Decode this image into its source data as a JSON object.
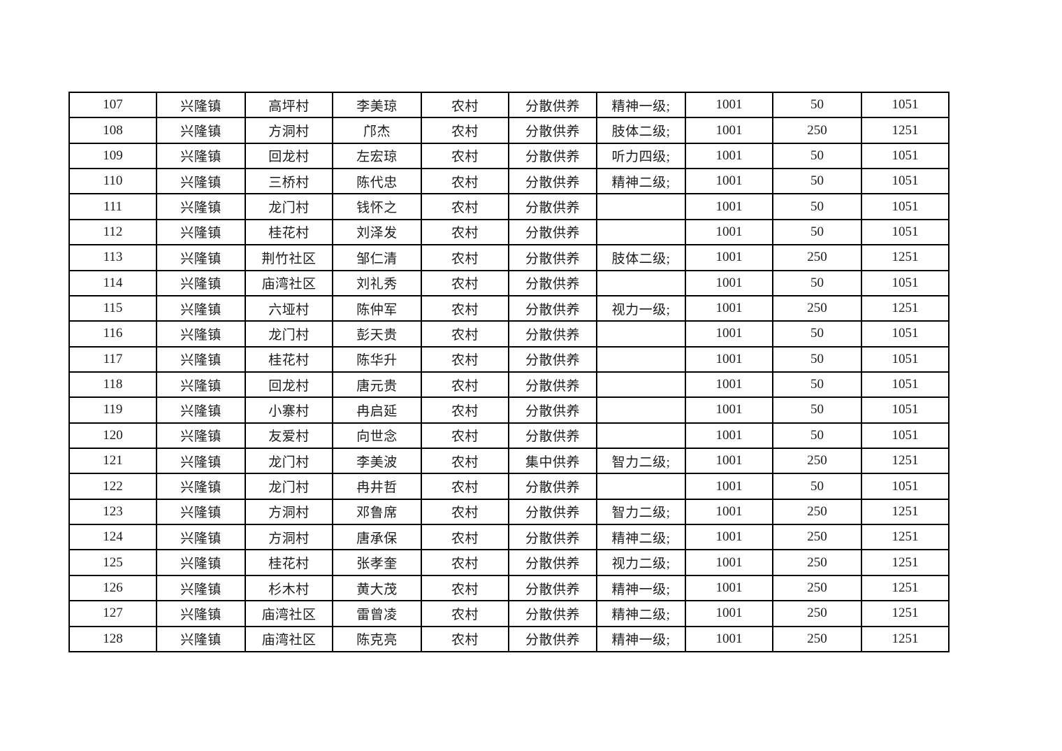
{
  "colors": {
    "page_background": "#ffffff",
    "table_border": "#000000",
    "text": "#1c1c1c"
  },
  "table": {
    "rows": [
      [
        "107",
        "兴隆镇",
        "高坪村",
        "李美琼",
        "农村",
        "分散供养",
        "精神一级;",
        "1001",
        "50",
        "1051"
      ],
      [
        "108",
        "兴隆镇",
        "方洞村",
        "邝杰",
        "农村",
        "分散供养",
        "肢体二级;",
        "1001",
        "250",
        "1251"
      ],
      [
        "109",
        "兴隆镇",
        "回龙村",
        "左宏琼",
        "农村",
        "分散供养",
        "听力四级;",
        "1001",
        "50",
        "1051"
      ],
      [
        "110",
        "兴隆镇",
        "三桥村",
        "陈代忠",
        "农村",
        "分散供养",
        "精神二级;",
        "1001",
        "50",
        "1051"
      ],
      [
        "111",
        "兴隆镇",
        "龙门村",
        "钱怀之",
        "农村",
        "分散供养",
        "",
        "1001",
        "50",
        "1051"
      ],
      [
        "112",
        "兴隆镇",
        "桂花村",
        "刘泽发",
        "农村",
        "分散供养",
        "",
        "1001",
        "50",
        "1051"
      ],
      [
        "113",
        "兴隆镇",
        "荆竹社区",
        "邹仁清",
        "农村",
        "分散供养",
        "肢体二级;",
        "1001",
        "250",
        "1251"
      ],
      [
        "114",
        "兴隆镇",
        "庙湾社区",
        "刘礼秀",
        "农村",
        "分散供养",
        "",
        "1001",
        "50",
        "1051"
      ],
      [
        "115",
        "兴隆镇",
        "六垭村",
        "陈仲军",
        "农村",
        "分散供养",
        "视力一级;",
        "1001",
        "250",
        "1251"
      ],
      [
        "116",
        "兴隆镇",
        "龙门村",
        "彭天贵",
        "农村",
        "分散供养",
        "",
        "1001",
        "50",
        "1051"
      ],
      [
        "117",
        "兴隆镇",
        "桂花村",
        "陈华升",
        "农村",
        "分散供养",
        "",
        "1001",
        "50",
        "1051"
      ],
      [
        "118",
        "兴隆镇",
        "回龙村",
        "唐元贵",
        "农村",
        "分散供养",
        "",
        "1001",
        "50",
        "1051"
      ],
      [
        "119",
        "兴隆镇",
        "小寨村",
        "冉启延",
        "农村",
        "分散供养",
        "",
        "1001",
        "50",
        "1051"
      ],
      [
        "120",
        "兴隆镇",
        "友爱村",
        "向世念",
        "农村",
        "分散供养",
        "",
        "1001",
        "50",
        "1051"
      ],
      [
        "121",
        "兴隆镇",
        "龙门村",
        "李美波",
        "农村",
        "集中供养",
        "智力二级;",
        "1001",
        "250",
        "1251"
      ],
      [
        "122",
        "兴隆镇",
        "龙门村",
        "冉井哲",
        "农村",
        "分散供养",
        "",
        "1001",
        "50",
        "1051"
      ],
      [
        "123",
        "兴隆镇",
        "方洞村",
        "邓鲁席",
        "农村",
        "分散供养",
        "智力二级;",
        "1001",
        "250",
        "1251"
      ],
      [
        "124",
        "兴隆镇",
        "方洞村",
        "唐承保",
        "农村",
        "分散供养",
        "精神二级;",
        "1001",
        "250",
        "1251"
      ],
      [
        "125",
        "兴隆镇",
        "桂花村",
        "张孝奎",
        "农村",
        "分散供养",
        "视力二级;",
        "1001",
        "250",
        "1251"
      ],
      [
        "126",
        "兴隆镇",
        "杉木村",
        "黄大茂",
        "农村",
        "分散供养",
        "精神一级;",
        "1001",
        "250",
        "1251"
      ],
      [
        "127",
        "兴隆镇",
        "庙湾社区",
        "雷曾凌",
        "农村",
        "分散供养",
        "精神二级;",
        "1001",
        "250",
        "1251"
      ],
      [
        "128",
        "兴隆镇",
        "庙湾社区",
        "陈克亮",
        "农村",
        "分散供养",
        "精神一级;",
        "1001",
        "250",
        "1251"
      ]
    ]
  }
}
